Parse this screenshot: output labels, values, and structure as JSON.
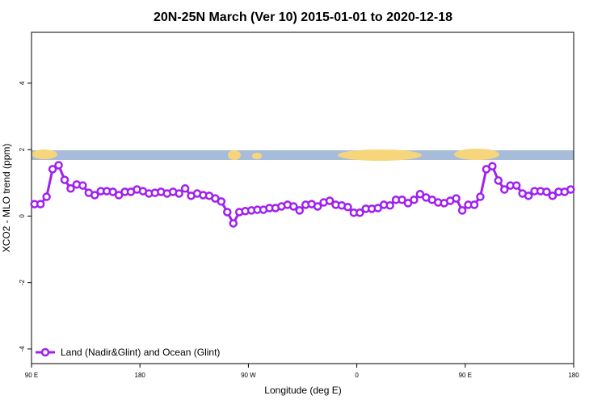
{
  "chart_data": {
    "type": "line",
    "title": "20N-25N March (Ver 10)   2015-01-01 to 2020-12-18",
    "x_label": "Longitude (deg E)",
    "y_label": "XCO2 - MLO trend (ppm)",
    "x": [
      92.5,
      97.5,
      102.5,
      107.5,
      112.5,
      117.5,
      122.5,
      127.5,
      132.5,
      137.5,
      142.5,
      147.5,
      152.5,
      157.5,
      162.5,
      167.5,
      172.5,
      177.5,
      182.5,
      187.5,
      192.5,
      197.5,
      202.5,
      207.5,
      212.5,
      217.5,
      222.5,
      227.5,
      232.5,
      237.5,
      242.5,
      247.5,
      252.5,
      257.5,
      262.5,
      267.5,
      272.5,
      277.5,
      282.5,
      287.5,
      292.5,
      297.5,
      302.5,
      307.5,
      312.5,
      317.5,
      322.5,
      327.5,
      332.5,
      337.5,
      342.5,
      347.5,
      352.5,
      357.5,
      362.5,
      367.5,
      372.5,
      377.5,
      382.5,
      387.5,
      392.5,
      397.5,
      402.5,
      407.5,
      412.5,
      417.5,
      422.5,
      427.5,
      432.5,
      437.5,
      442.5,
      447.5,
      452.5,
      457.5,
      462.5,
      467.5,
      472.5,
      477.5,
      482.5,
      487.5,
      492.5,
      497.5,
      502.5,
      507.5,
      512.5,
      517.5,
      522.5,
      527.5,
      532.5,
      537.5
    ],
    "series": [
      {
        "name": "Land (Nadir&Glint) and Ocean (Glint)",
        "color": "#a020f0",
        "values": [
          0.36,
          0.36,
          0.58,
          1.41,
          1.53,
          1.09,
          0.83,
          0.95,
          0.92,
          0.7,
          0.63,
          0.75,
          0.75,
          0.73,
          0.63,
          0.73,
          0.73,
          0.8,
          0.75,
          0.68,
          0.7,
          0.73,
          0.68,
          0.73,
          0.68,
          0.83,
          0.61,
          0.68,
          0.63,
          0.61,
          0.53,
          0.44,
          0.12,
          -0.22,
          0.12,
          0.15,
          0.17,
          0.19,
          0.19,
          0.24,
          0.24,
          0.29,
          0.34,
          0.29,
          0.17,
          0.34,
          0.36,
          0.29,
          0.41,
          0.46,
          0.34,
          0.32,
          0.27,
          0.1,
          0.1,
          0.22,
          0.22,
          0.24,
          0.34,
          0.32,
          0.49,
          0.49,
          0.39,
          0.49,
          0.66,
          0.56,
          0.49,
          0.41,
          0.39,
          0.46,
          0.53,
          0.17,
          0.34,
          0.34,
          0.58,
          1.41,
          1.5,
          1.07,
          0.8,
          0.92,
          0.92,
          0.68,
          0.61,
          0.75,
          0.75,
          0.73,
          0.61,
          0.73,
          0.73,
          0.8
        ]
      }
    ],
    "xlim": [
      90,
      540
    ],
    "xticks": [
      {
        "value": 90,
        "label": "90 E"
      },
      180,
      {
        "value": 270,
        "label": "90 W"
      },
      {
        "value": 360,
        "label": "0"
      },
      {
        "value": 450,
        "label": "90 E"
      },
      {
        "value": 540,
        "label": "180"
      }
    ],
    "ylim": [
      -4.44,
      5.53
    ],
    "yticks": [
      -4,
      -2,
      0,
      2,
      4
    ],
    "legend": "bottom-left"
  }
}
